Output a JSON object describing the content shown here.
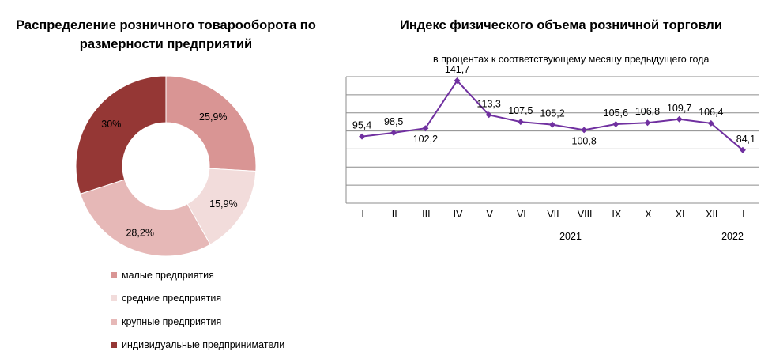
{
  "chart_data": [
    {
      "type": "pie",
      "title": "Распределение розничного товарооборота по размерности предприятий",
      "slices": [
        {
          "label": "малые предприятия",
          "value": 25.9,
          "value_label": "25,9%",
          "color": "#d99594"
        },
        {
          "label": "средние предприятия",
          "value": 15.9,
          "value_label": "15,9%",
          "color": "#f2dcdb"
        },
        {
          "label": "крупные предприятия",
          "value": 28.2,
          "value_label": "28,2%",
          "color": "#e6b8b7"
        },
        {
          "label": "индивидуальные предприниматели",
          "value": 30,
          "value_label": "30%",
          "color": "#953735"
        }
      ],
      "donut": true,
      "legend_position": "bottom"
    },
    {
      "type": "line",
      "title": "Индекс физического объема розничной торговли",
      "subtitle": "в процентах к соответствующему месяцу предыдущего года",
      "categories": [
        "I",
        "II",
        "III",
        "IV",
        "V",
        "VI",
        "VII",
        "VIII",
        "IX",
        "X",
        "XI",
        "XII",
        "I"
      ],
      "year_labels": [
        "2021",
        "2022"
      ],
      "series": [
        {
          "values": [
            95.4,
            98.5,
            102.2,
            141.7,
            113.3,
            107.5,
            105.2,
            100.8,
            105.6,
            106.8,
            109.7,
            106.4,
            84.1
          ],
          "labels": [
            "95,4",
            "98,5",
            "102,2",
            "141,7",
            "113,3",
            "107,5",
            "105,2",
            "100,8",
            "105,6",
            "106,8",
            "109,7",
            "106,4",
            "84,1"
          ],
          "color": "#7030a0"
        }
      ],
      "ylim": [
        40,
        145
      ],
      "grid": true
    }
  ]
}
